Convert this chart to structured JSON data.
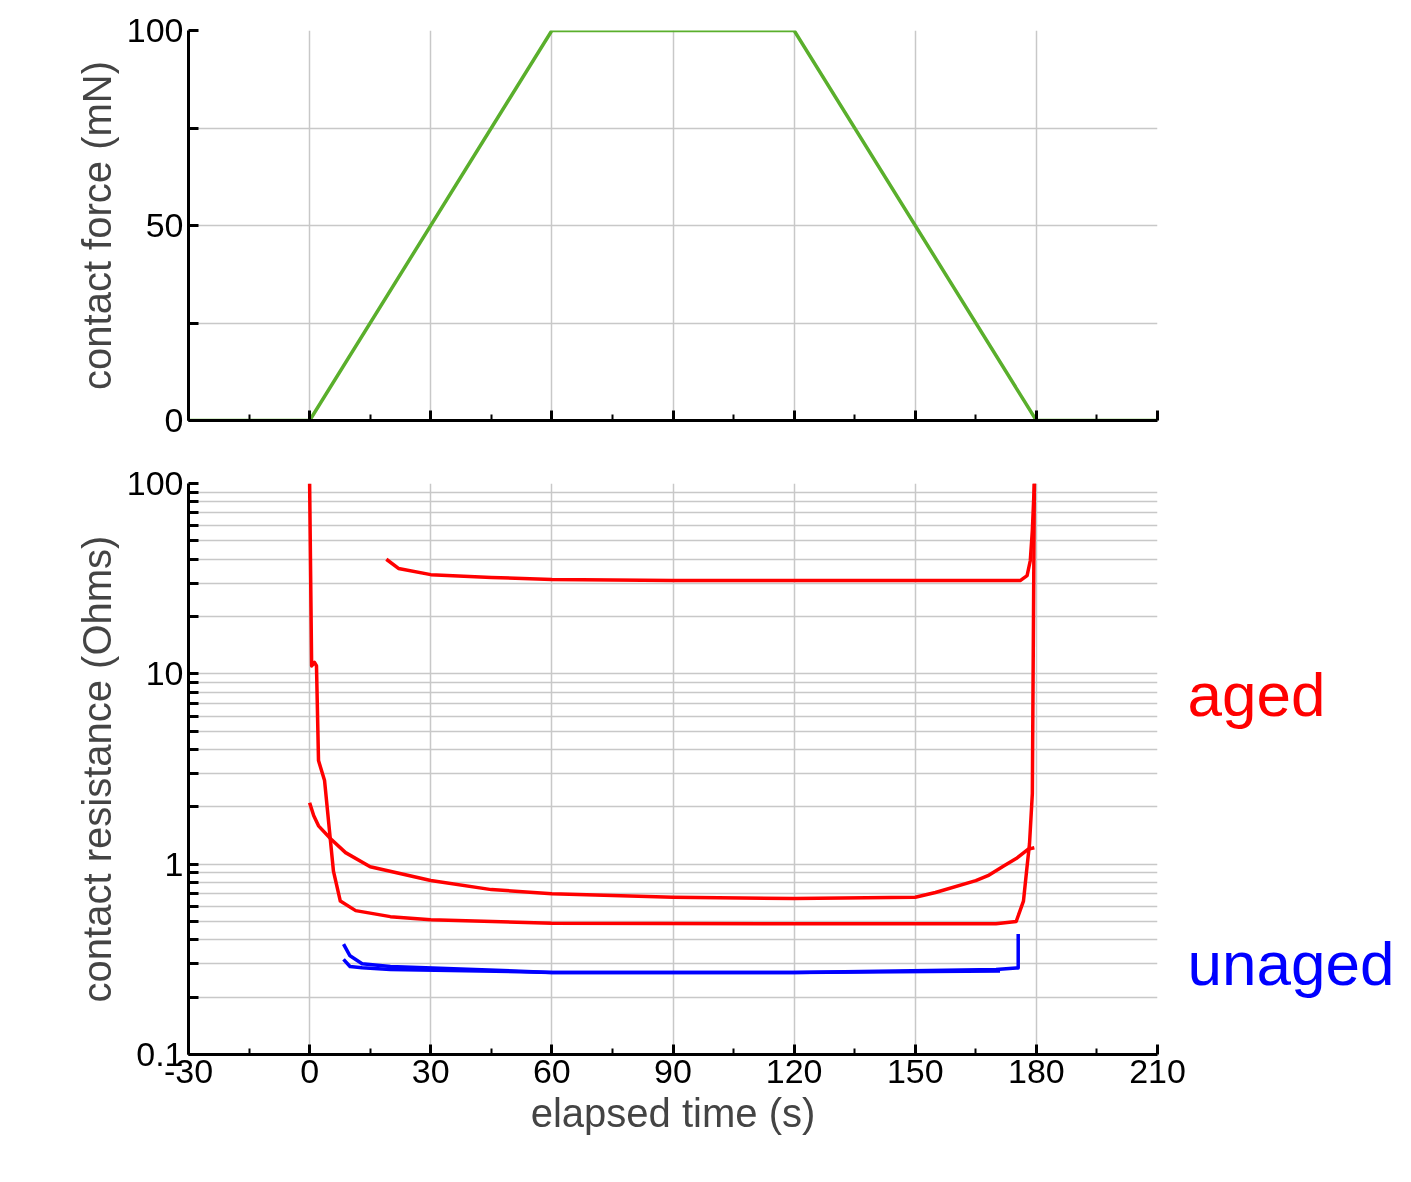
{
  "chart_data": [
    {
      "type": "line",
      "ylabel": "contact force (mN)",
      "xlim": [
        -30,
        210
      ],
      "ylim": [
        0,
        100
      ],
      "xticks": [
        -30,
        0,
        30,
        60,
        90,
        120,
        150,
        180,
        210,
        {
          "value": -15,
          "label": null
        },
        {
          "value": 15,
          "label": null
        },
        {
          "value": 45,
          "label": null
        },
        {
          "value": 75,
          "label": null
        },
        {
          "value": 105,
          "label": null
        },
        {
          "value": 135,
          "label": null
        },
        {
          "value": 165,
          "label": null
        },
        {
          "value": 195,
          "label": null
        }
      ],
      "yticks": [
        0,
        {
          "value": 25,
          "label": null
        },
        50,
        {
          "value": 75,
          "label": null
        },
        100
      ],
      "tick_labels": "y",
      "grid": true,
      "marker": "none",
      "line_style": "solid",
      "series": [
        {
          "color": "#5aaf2c",
          "x": [
            -30,
            0,
            60,
            120,
            180,
            210
          ],
          "values": [
            0,
            0,
            100,
            100,
            0,
            0
          ]
        }
      ]
    },
    {
      "type": "line",
      "xlabel": "elapsed time (s)",
      "ylabel": "contact resistance (Ohms)",
      "xlim": [
        -30,
        210
      ],
      "ylim": [
        0.1,
        100
      ],
      "log": "y",
      "xticks": [
        -30,
        0,
        30,
        60,
        90,
        120,
        150,
        180,
        210,
        {
          "value": -15,
          "label": null
        },
        {
          "value": 15,
          "label": null
        },
        {
          "value": 45,
          "label": null
        },
        {
          "value": 75,
          "label": null
        },
        {
          "value": 105,
          "label": null
        },
        {
          "value": 135,
          "label": null
        },
        {
          "value": 165,
          "label": null
        },
        {
          "value": 195,
          "label": null
        }
      ],
      "yticks": [
        0.1,
        {
          "value": 0.2,
          "label": null
        },
        {
          "value": 0.3,
          "label": null
        },
        {
          "value": 0.4,
          "label": null
        },
        {
          "value": 0.5,
          "label": null
        },
        {
          "value": 0.6,
          "label": null
        },
        {
          "value": 0.7,
          "label": null
        },
        {
          "value": 0.8,
          "label": null
        },
        {
          "value": 0.9,
          "label": null
        },
        1,
        {
          "value": 2,
          "label": null
        },
        {
          "value": 3,
          "label": null
        },
        {
          "value": 4,
          "label": null
        },
        {
          "value": 5,
          "label": null
        },
        {
          "value": 6,
          "label": null
        },
        {
          "value": 7,
          "label": null
        },
        {
          "value": 8,
          "label": null
        },
        {
          "value": 9,
          "label": null
        },
        10,
        {
          "value": 20,
          "label": null
        },
        {
          "value": 30,
          "label": null
        },
        {
          "value": 40,
          "label": null
        },
        {
          "value": 50,
          "label": null
        },
        {
          "value": 60,
          "label": null
        },
        {
          "value": 70,
          "label": null
        },
        {
          "value": 80,
          "label": null
        },
        {
          "value": 90,
          "label": null
        },
        100
      ],
      "grid": true,
      "marker": "none",
      "line_style": "solid",
      "annotations": [
        "aged",
        "unaged"
      ],
      "series": [
        {
          "color": "#ff0000",
          "x": [
            0,
            0.5,
            1.2,
            1.7,
            2.2,
            3.7,
            5.9,
            7.6,
            11.4,
            20,
            30,
            60,
            120,
            170,
            175,
            176.8,
            177.6,
            178.3,
            179,
            179.5
          ],
          "values": [
            100,
            11,
            11.5,
            11,
            3.5,
            2.75,
            0.92,
            0.64,
            0.57,
            0.53,
            0.51,
            0.49,
            0.486,
            0.486,
            0.5,
            0.64,
            0.93,
            1.28,
            2.35,
            100
          ]
        },
        {
          "color": "#ff0000",
          "x": [
            0,
            1,
            2.2,
            5.2,
            8.9,
            15,
            30,
            45,
            60,
            90,
            120,
            150,
            155,
            165,
            168,
            172,
            175,
            178,
            179.5
          ],
          "values": [
            2.1,
            1.8,
            1.59,
            1.36,
            1.15,
            0.97,
            0.82,
            0.735,
            0.7,
            0.67,
            0.66,
            0.67,
            0.71,
            0.82,
            0.87,
            0.98,
            1.07,
            1.2,
            1.22
          ]
        },
        {
          "color": "#ff0000",
          "x": [
            19,
            22,
            30,
            45,
            60,
            90,
            150,
            176,
            177.7,
            178.5,
            179,
            179.5
          ],
          "values": [
            40,
            35.8,
            33.2,
            32.1,
            31.3,
            30.9,
            30.9,
            30.9,
            32.8,
            39.4,
            56.6,
            100
          ]
        },
        {
          "color": "#0000ff",
          "x": [
            8.4,
            10,
            13,
            20,
            60,
            120,
            170,
            175,
            175.5,
            175.5
          ],
          "values": [
            0.38,
            0.33,
            0.3,
            0.29,
            0.27,
            0.27,
            0.28,
            0.285,
            0.285,
            0.43
          ]
        },
        {
          "color": "#0000ff",
          "x": [
            8.4,
            10,
            13,
            20,
            60,
            120,
            171
          ],
          "values": [
            0.316,
            0.29,
            0.286,
            0.28,
            0.27,
            0.27,
            0.275
          ]
        }
      ]
    }
  ]
}
